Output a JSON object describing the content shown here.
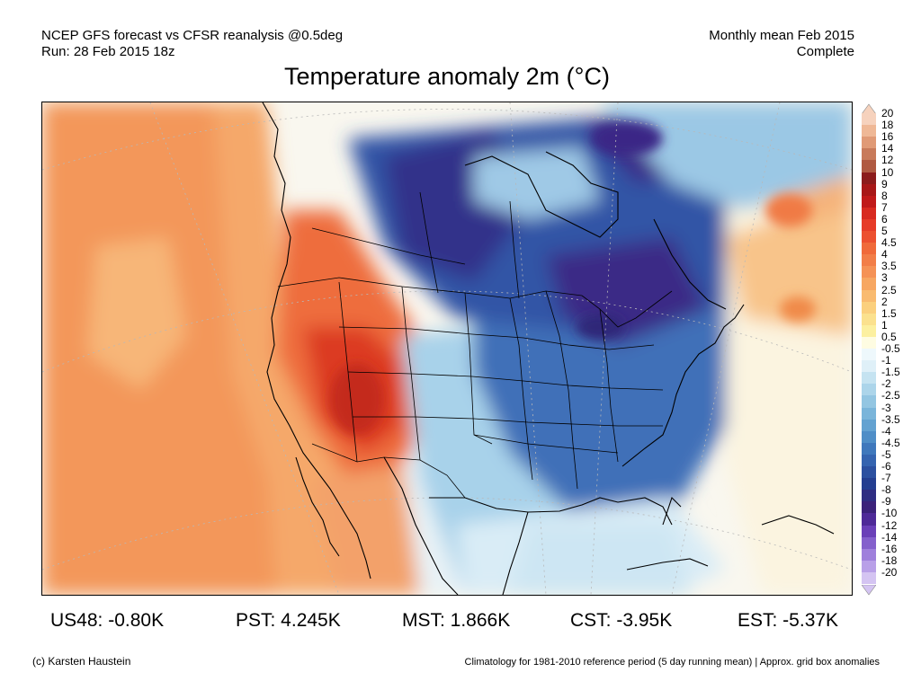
{
  "header": {
    "line1": "NCEP GFS forecast vs CFSR reanalysis @0.5deg",
    "line2": "Run: 28 Feb 2015 18z",
    "right_line1": "Monthly mean Feb 2015",
    "right_line2": "Complete"
  },
  "title": "Temperature anomaly 2m (°C)",
  "colorbar": {
    "levels": [
      "20",
      "18",
      "16",
      "14",
      "12",
      "10",
      "9",
      "8",
      "7",
      "6",
      "5",
      "4.5",
      "4",
      "3.5",
      "3",
      "2.5",
      "2",
      "1.5",
      "1",
      "0.5",
      "-0.5",
      "-1",
      "-1.5",
      "-2",
      "-2.5",
      "-3",
      "-3.5",
      "-4",
      "-4.5",
      "-5",
      "-6",
      "-7",
      "-8",
      "-9",
      "-10",
      "-12",
      "-14",
      "-16",
      "-18",
      "-20"
    ],
    "colors": [
      "#f6d2bd",
      "#efb896",
      "#e09a76",
      "#c87a5a",
      "#b05a42",
      "#8c1c1c",
      "#a81818",
      "#c01a1a",
      "#d82a20",
      "#e63b28",
      "#ec5030",
      "#f06a3a",
      "#f27e48",
      "#f59256",
      "#f7a762",
      "#f9bb70",
      "#fbd07e",
      "#fbe18e",
      "#fcf0a0",
      "#fefce2",
      "#eef8fc",
      "#dff0f8",
      "#c5e3f1",
      "#acd5ea",
      "#93c6e2",
      "#7ab5da",
      "#63a2d1",
      "#4f8ec7",
      "#3f78bc",
      "#3564b0",
      "#2c50a0",
      "#243e90",
      "#2f2d82",
      "#3b227a",
      "#4e2a98",
      "#6a40b8",
      "#8460cc",
      "#9f80dc",
      "#b9a0e8",
      "#d4c4f2"
    ]
  },
  "stats": [
    {
      "label": "US48: -0.80K"
    },
    {
      "label": "PST: 4.245K"
    },
    {
      "label": "MST: 1.866K"
    },
    {
      "label": "CST: -3.95K"
    },
    {
      "label": "EST: -5.37K"
    }
  ],
  "footer": {
    "credit": "(c) Karsten Haustein",
    "note": "Climatology for 1981-2010 reference period (5 day running mean) | Approx. grid box anomalies"
  }
}
